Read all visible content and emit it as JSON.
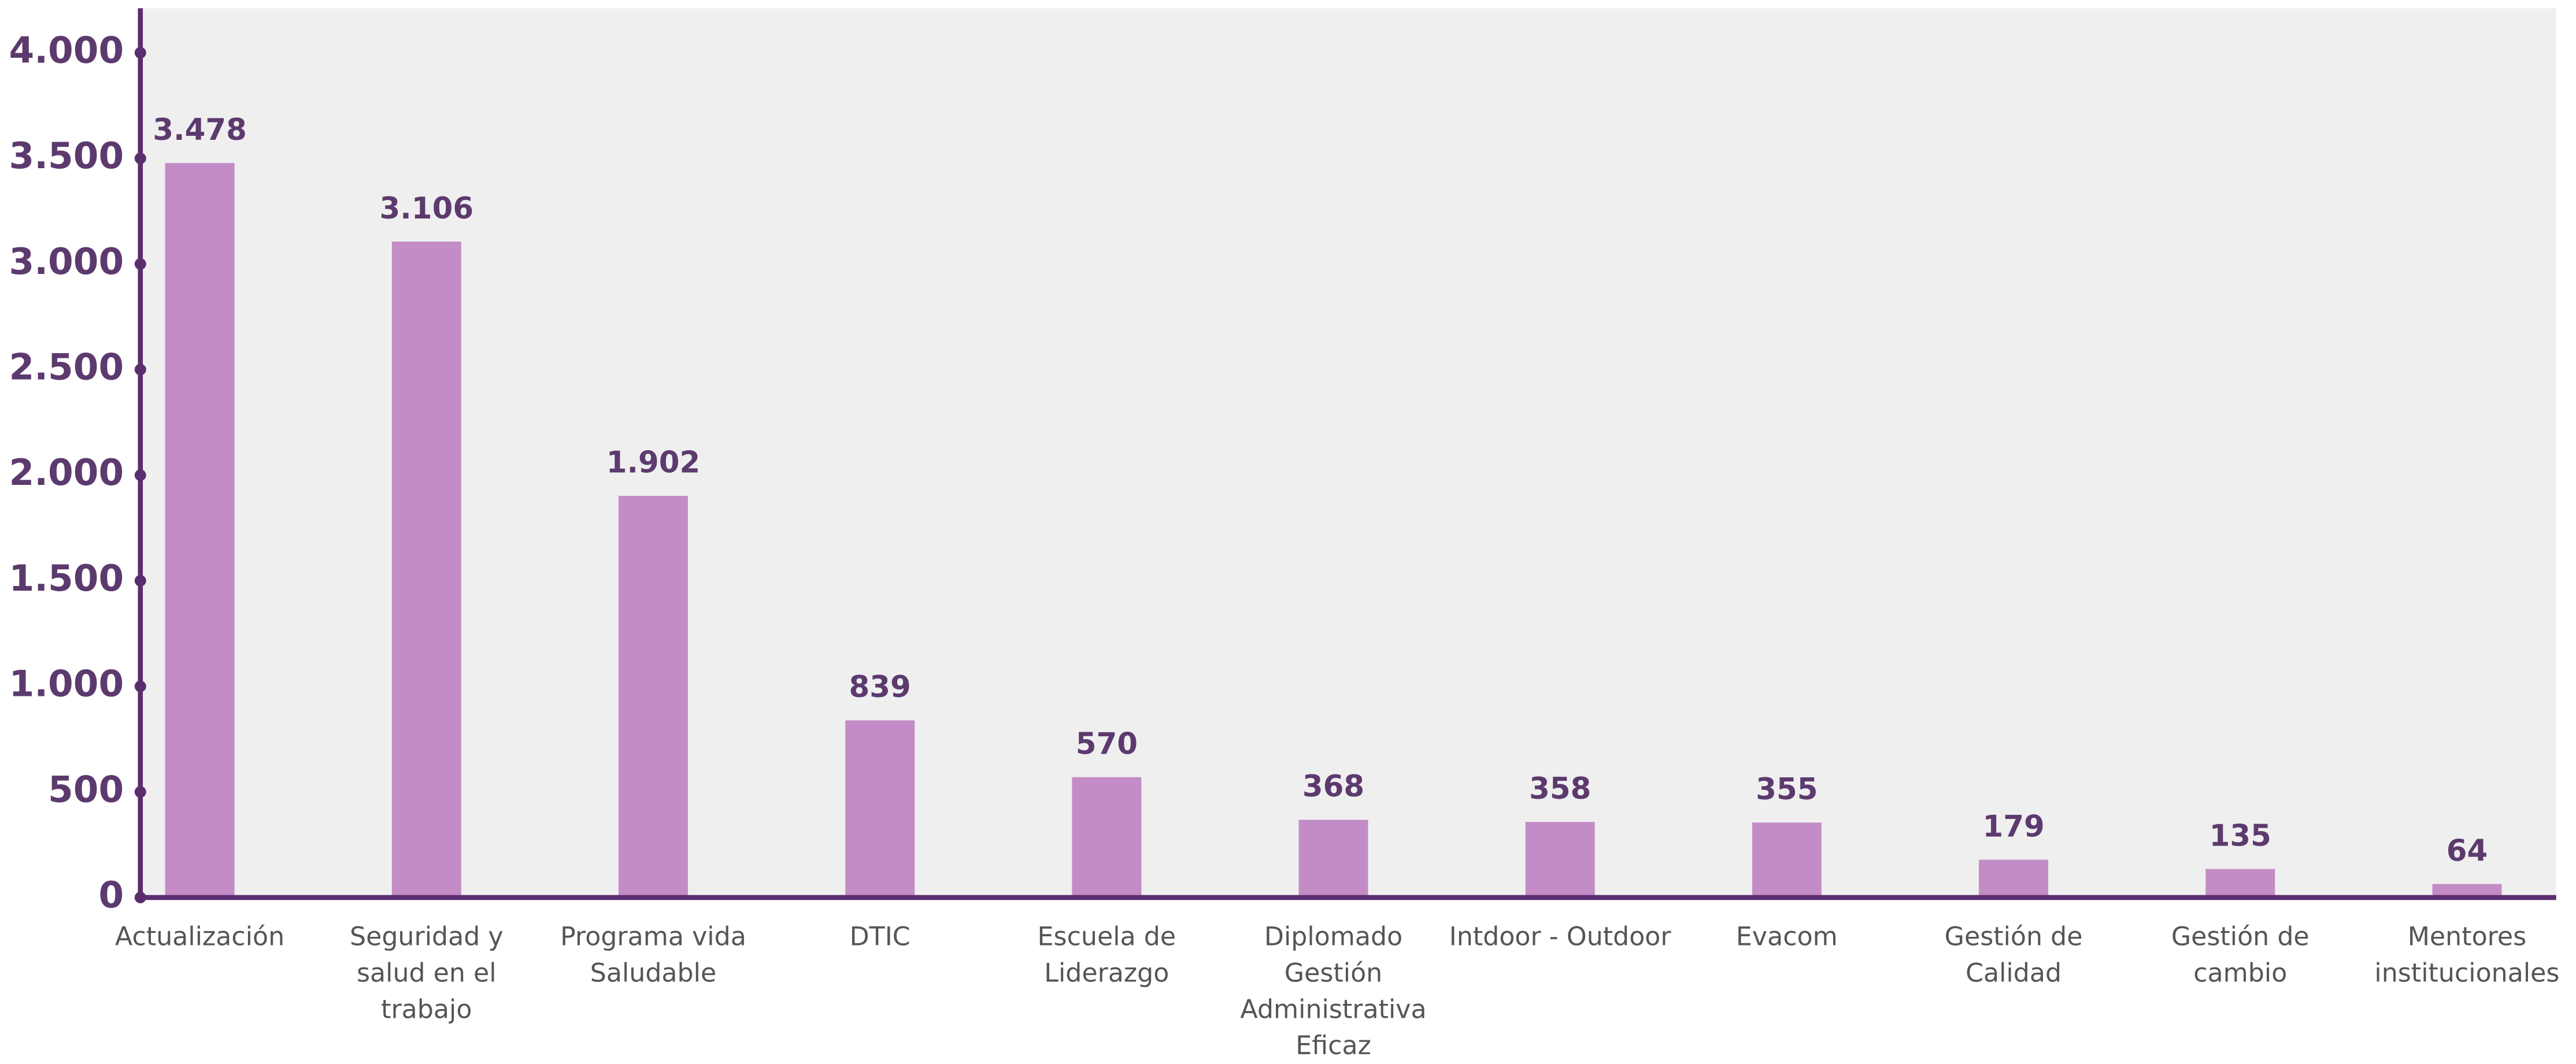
{
  "chart_data": {
    "type": "bar",
    "categories": [
      "Actualización",
      "Seguridad y salud en el trabajo",
      "Programa vida Saludable",
      "DTIC",
      "Escuela de Liderazgo",
      "Diplomado Gestión Administrativa Eficaz",
      "Intdoor - Outdoor",
      "Evacom",
      "Gestión de Calidad",
      "Gestión de cambio",
      "Mentores institucionales"
    ],
    "values": [
      3478,
      3106,
      1902,
      839,
      570,
      368,
      358,
      355,
      179,
      135,
      64
    ],
    "value_labels": [
      "3.478",
      "3.106",
      "1.902",
      "839",
      "570",
      "368",
      "358",
      "355",
      "179",
      "135",
      "64"
    ],
    "color": "#c38cc6",
    "ylim": [
      0,
      4000
    ],
    "yticks": [
      0,
      500,
      {
        "value": 1000,
        "label": "1.000"
      },
      {
        "value": 1500,
        "label": "1.500"
      },
      {
        "value": 2000,
        "label": "2.000"
      },
      {
        "value": 2500,
        "label": "2.500"
      },
      {
        "value": 3000,
        "label": "3.000"
      },
      {
        "value": 3500,
        "label": "3.500"
      },
      {
        "value": 4000,
        "label": "4.000"
      }
    ],
    "grid": false
  }
}
